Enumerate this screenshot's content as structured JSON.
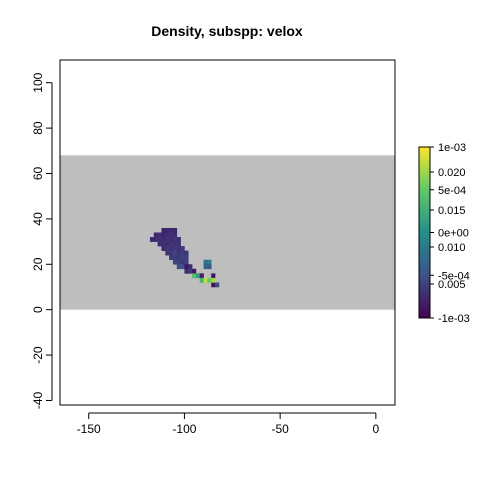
{
  "chart_data": {
    "type": "heatmap",
    "title": "Density, subspp: velox",
    "xlabel": "",
    "ylabel": "",
    "xlim": [
      -165,
      10
    ],
    "ylim": [
      -42,
      110
    ],
    "x_ticks": [
      -150,
      -100,
      -50,
      0
    ],
    "y_ticks": [
      -40,
      -20,
      0,
      20,
      40,
      60,
      80,
      100
    ],
    "background_band": {
      "y_from": 0,
      "y_to": 68,
      "color": "#bebebe"
    },
    "grid": false,
    "legend": {
      "position": "right",
      "type": "colorbar",
      "colors": [
        "#440154",
        "#3b528b",
        "#21908c",
        "#5dc963",
        "#fde725"
      ],
      "labels_set_1": [
        "1e-03",
        "5e-04",
        "0e+00",
        "-5e-04",
        "-1e-03"
      ],
      "labels_set_2": [
        "0.020",
        "0.015",
        "0.010",
        "0.005"
      ]
    },
    "cells": [
      {
        "x": -116,
        "y": 32,
        "value": 0.0003
      },
      {
        "x": -114,
        "y": 32,
        "value": 0.0004
      },
      {
        "x": -112,
        "y": 32,
        "value": 0.0003
      },
      {
        "x": -110,
        "y": 32,
        "value": 0.0004
      },
      {
        "x": -108,
        "y": 32,
        "value": 0.0005
      },
      {
        "x": -106,
        "y": 32,
        "value": 0.0004
      },
      {
        "x": -112,
        "y": 34,
        "value": 0.0003
      },
      {
        "x": -110,
        "y": 34,
        "value": 0.0003
      },
      {
        "x": -108,
        "y": 34,
        "value": 0.0004
      },
      {
        "x": -106,
        "y": 34,
        "value": 0.0003
      },
      {
        "x": -118,
        "y": 30,
        "value": 0.0003
      },
      {
        "x": -116,
        "y": 30,
        "value": 0.0004
      },
      {
        "x": -114,
        "y": 30,
        "value": 0.0005
      },
      {
        "x": -112,
        "y": 30,
        "value": 0.0004
      },
      {
        "x": -110,
        "y": 30,
        "value": 0.0005
      },
      {
        "x": -108,
        "y": 30,
        "value": 0.0004
      },
      {
        "x": -106,
        "y": 30,
        "value": 0.0005
      },
      {
        "x": -104,
        "y": 30,
        "value": 0.0004
      },
      {
        "x": -114,
        "y": 28,
        "value": 0.0004
      },
      {
        "x": -112,
        "y": 28,
        "value": 0.0005
      },
      {
        "x": -110,
        "y": 28,
        "value": 0.0004
      },
      {
        "x": -108,
        "y": 28,
        "value": 0.0006
      },
      {
        "x": -106,
        "y": 28,
        "value": 0.0005
      },
      {
        "x": -104,
        "y": 28,
        "value": 0.0005
      },
      {
        "x": -112,
        "y": 26,
        "value": 0.0004
      },
      {
        "x": -110,
        "y": 26,
        "value": 0.0006
      },
      {
        "x": -108,
        "y": 26,
        "value": 0.0005
      },
      {
        "x": -106,
        "y": 26,
        "value": 0.0006
      },
      {
        "x": -104,
        "y": 26,
        "value": 0.0005
      },
      {
        "x": -102,
        "y": 26,
        "value": 0.0006
      },
      {
        "x": -110,
        "y": 24,
        "value": 0.0005
      },
      {
        "x": -108,
        "y": 24,
        "value": 0.0006
      },
      {
        "x": -106,
        "y": 24,
        "value": 0.0008
      },
      {
        "x": -104,
        "y": 24,
        "value": 0.0006
      },
      {
        "x": -102,
        "y": 24,
        "value": 0.0007
      },
      {
        "x": -100,
        "y": 24,
        "value": 0.0006
      },
      {
        "x": -108,
        "y": 22,
        "value": 0.0006
      },
      {
        "x": -106,
        "y": 22,
        "value": 0.0007
      },
      {
        "x": -104,
        "y": 22,
        "value": 0.0006
      },
      {
        "x": -102,
        "y": 22,
        "value": 0.0008
      },
      {
        "x": -100,
        "y": 22,
        "value": 0.0007
      },
      {
        "x": -106,
        "y": 20,
        "value": 0.0008
      },
      {
        "x": -104,
        "y": 20,
        "value": 0.0007
      },
      {
        "x": -102,
        "y": 20,
        "value": 0.0006
      },
      {
        "x": -100,
        "y": 20,
        "value": 0.0007
      },
      {
        "x": -104,
        "y": 18,
        "value": 0.0009
      },
      {
        "x": -102,
        "y": 18,
        "value": 0.001
      },
      {
        "x": -100,
        "y": 18,
        "value": 0.0012
      },
      {
        "x": -98,
        "y": 18,
        "value": 0.0025
      },
      {
        "x": -100,
        "y": 16,
        "value": 0.0028
      },
      {
        "x": -98,
        "y": 16,
        "value": 0.0035
      },
      {
        "x": -96,
        "y": 16,
        "value": 0.0012
      },
      {
        "x": -96,
        "y": 14,
        "value": 0.015
      },
      {
        "x": -94,
        "y": 14,
        "value": 0.012
      },
      {
        "x": -92,
        "y": 14,
        "value": 0.0018
      },
      {
        "x": -92,
        "y": 12,
        "value": 0.014
      },
      {
        "x": -90,
        "y": 12,
        "value": 0.019
      },
      {
        "x": -88,
        "y": 12,
        "value": 0.016
      },
      {
        "x": -86,
        "y": 10,
        "value": 0.0011
      },
      {
        "x": -84,
        "y": 10,
        "value": 0.0009
      },
      {
        "x": -90,
        "y": 20,
        "value": 0.008
      },
      {
        "x": -88,
        "y": 20,
        "value": 0.009
      },
      {
        "x": -90,
        "y": 18,
        "value": 0.007
      },
      {
        "x": -88,
        "y": 18,
        "value": 0.006
      },
      {
        "x": -86,
        "y": 14,
        "value": 0.0012
      },
      {
        "x": -86,
        "y": 12,
        "value": 0.018
      }
    ]
  }
}
